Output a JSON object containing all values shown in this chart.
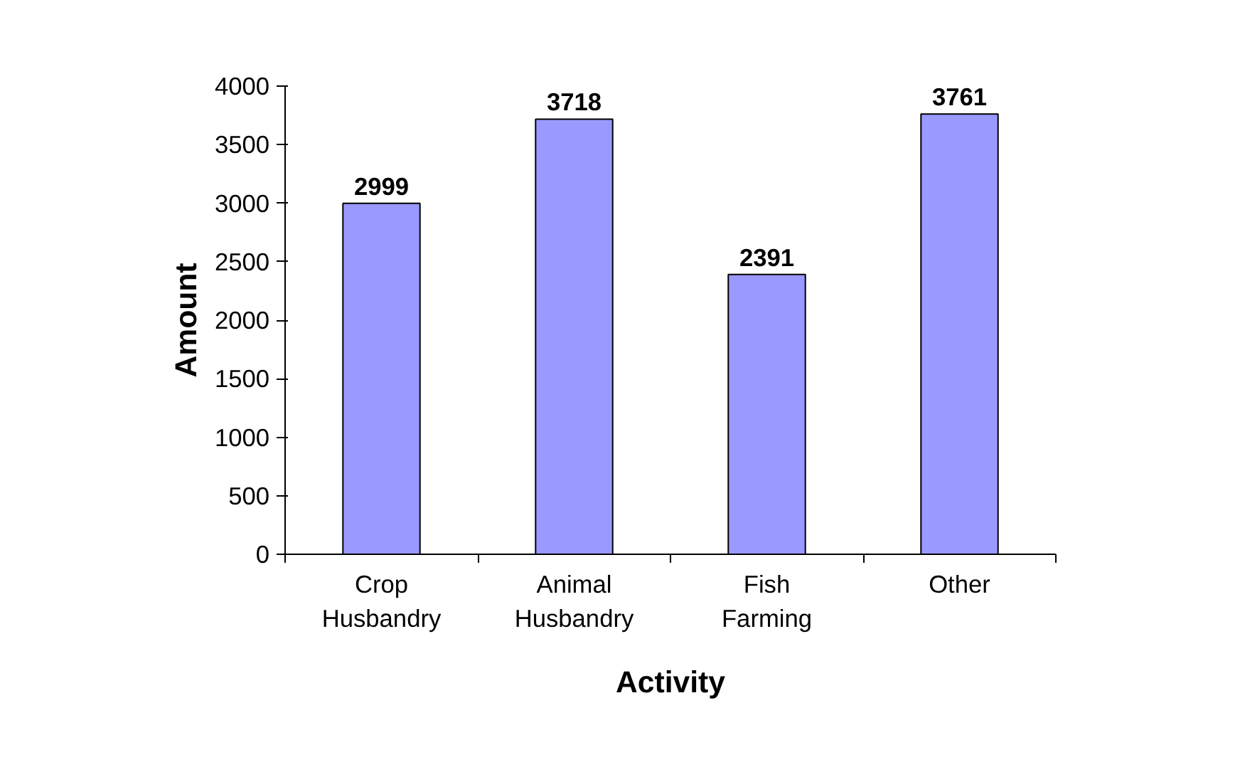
{
  "chart_data": {
    "type": "bar",
    "xlabel": "Activity",
    "ylabel": "Amount",
    "categories": [
      "Crop Husbandry",
      "Animal Husbandry",
      "Fish Farming",
      "Other"
    ],
    "values": [
      2999,
      3718,
      2391,
      3761
    ],
    "color": "#9999ff",
    "ylim": [
      0,
      4000
    ],
    "yticks": [
      0,
      500,
      1000,
      1500,
      2000,
      2500,
      3000,
      3500,
      4000
    ],
    "data_labels": true,
    "grid": false
  }
}
